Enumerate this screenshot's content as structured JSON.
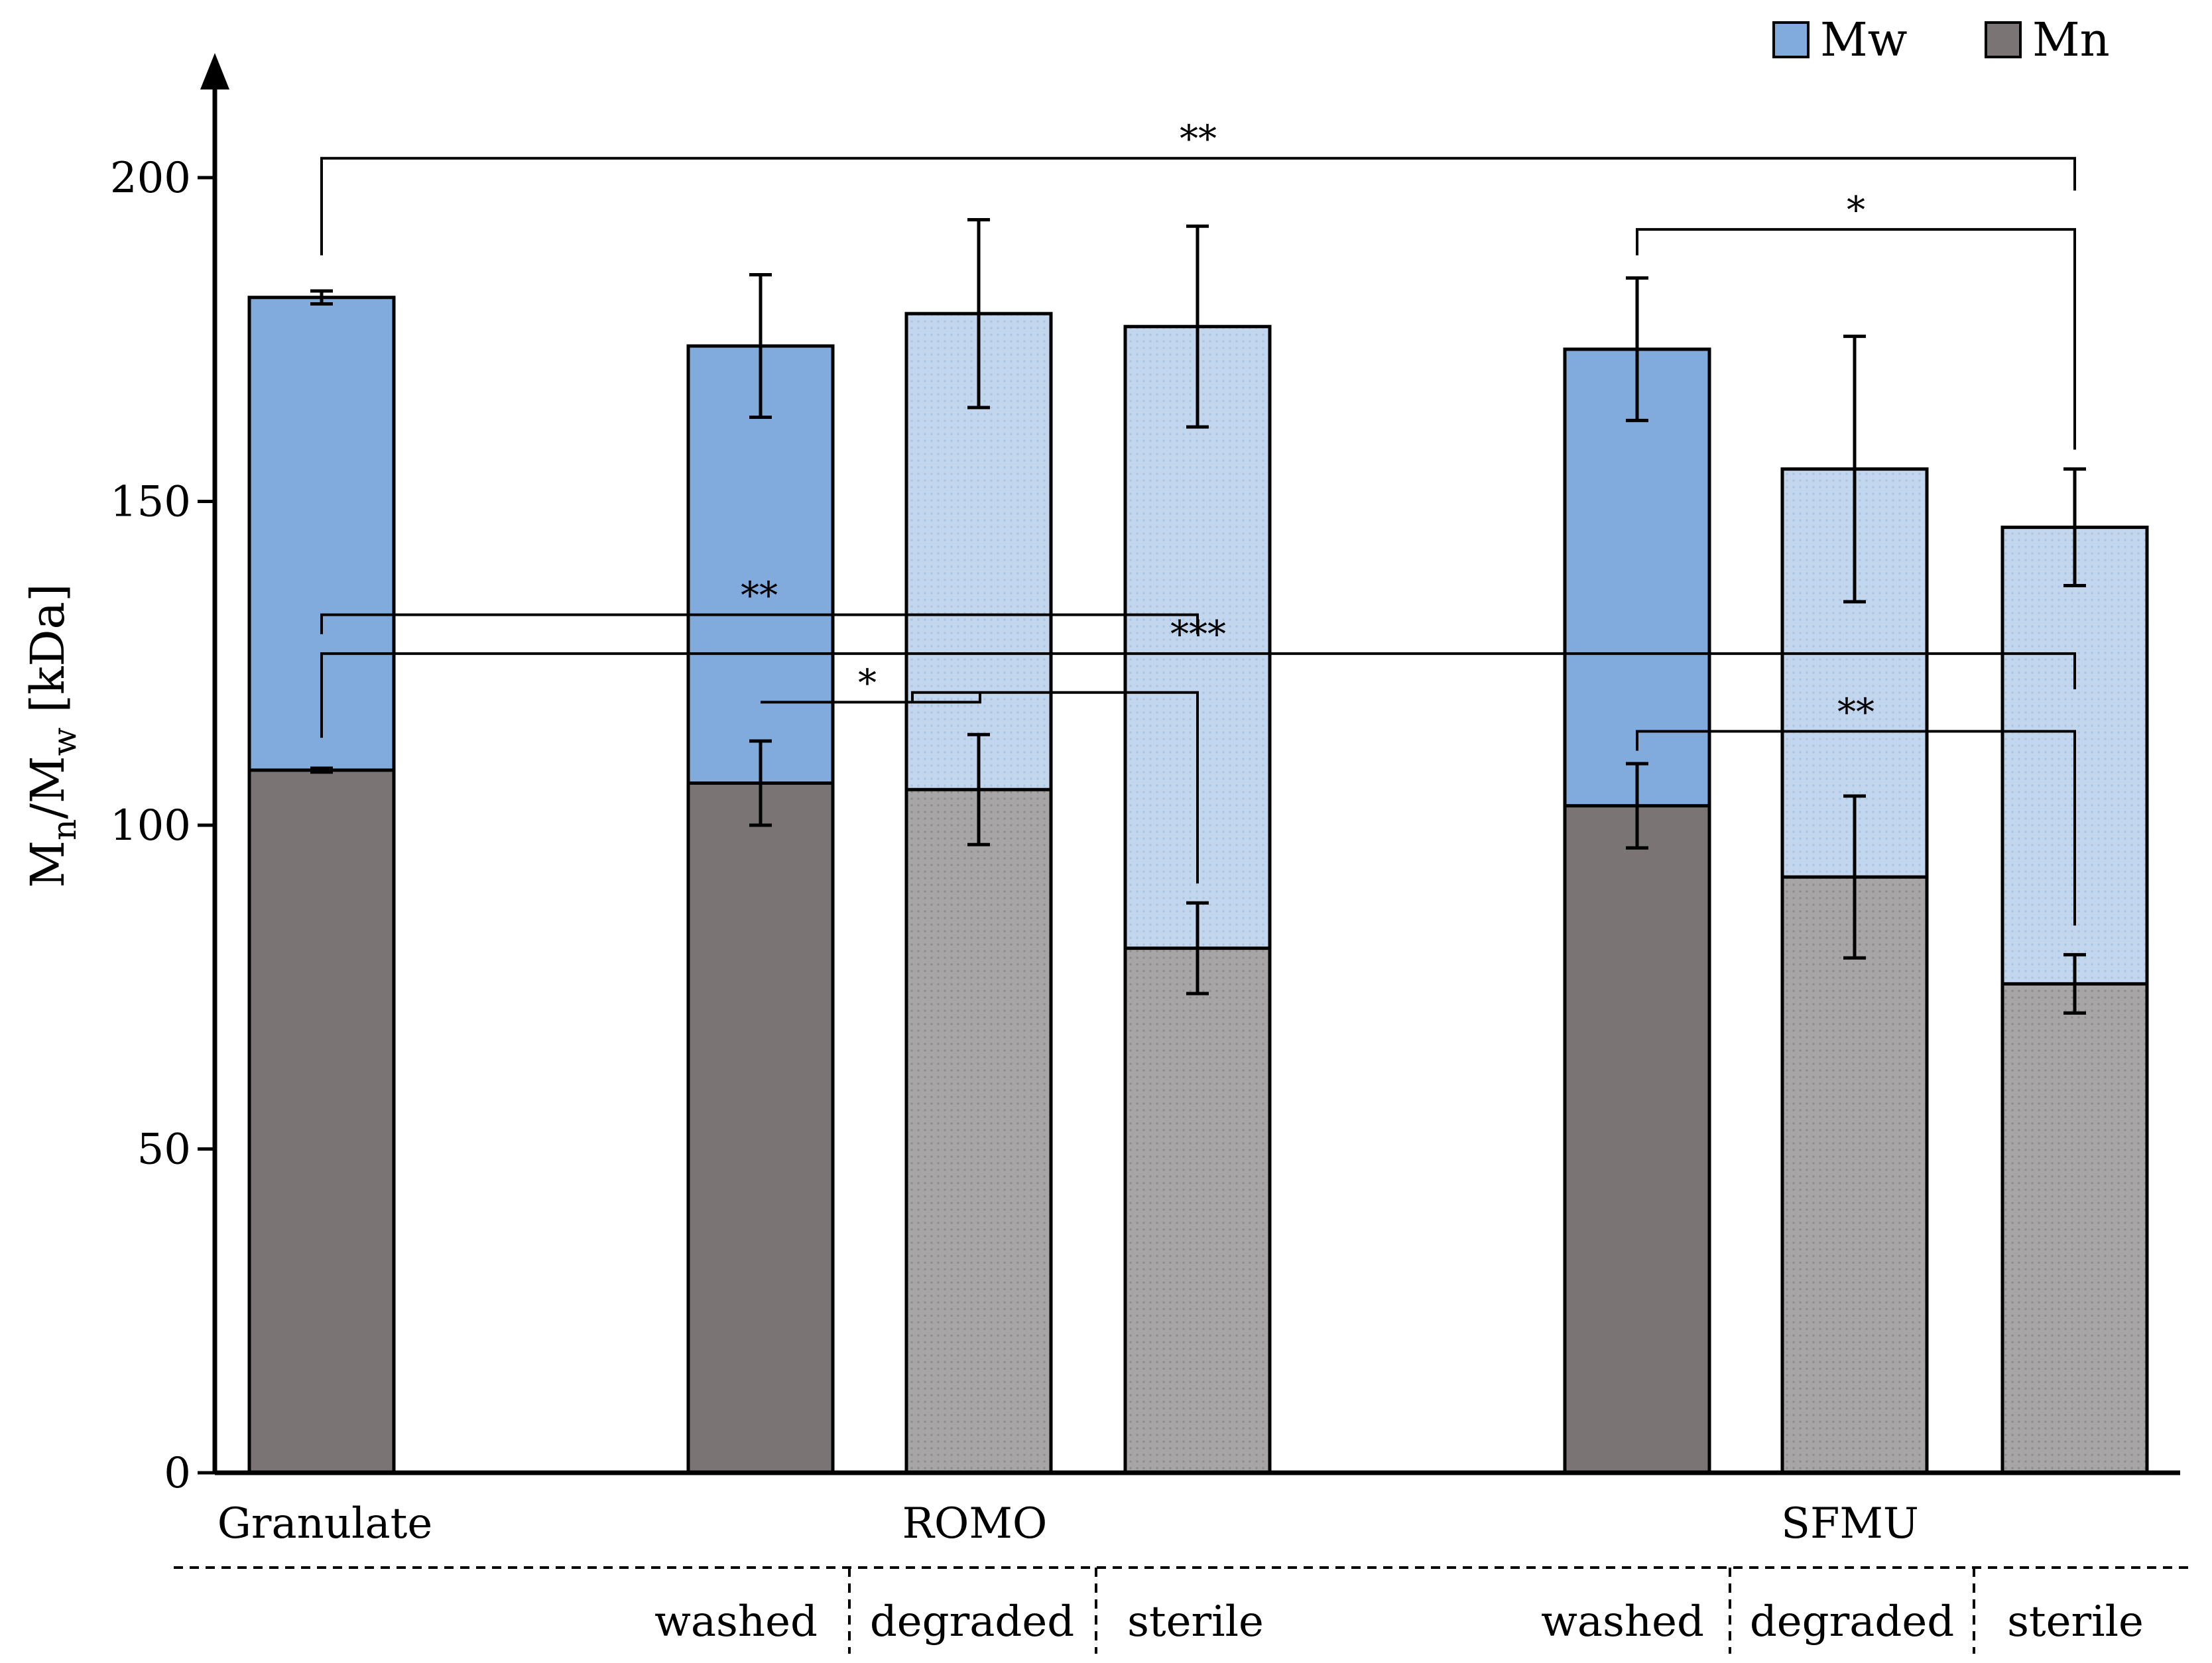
{
  "chart_data": {
    "type": "bar",
    "stacked": "overlay",
    "ylabel": "Mn/Mw [kDa]",
    "ylabel_parts": {
      "m1": "M",
      "n": "n",
      "sep": "/M",
      "w": "w",
      "unit": " [kDa]"
    },
    "ylim": [
      0,
      220
    ],
    "yticks": [
      0,
      50,
      100,
      150,
      200
    ],
    "grid": false,
    "legend": {
      "position": "top-right",
      "entries": [
        "Mw",
        "Mn"
      ]
    },
    "colors": {
      "mw_dark": "#80abdc",
      "mw_light": "#c2d6ee",
      "mn_dark": "#7a7474",
      "mn_light": "#a8a5a6",
      "axis": "#000000"
    },
    "groups": [
      "Granulate",
      "ROMO",
      "SFMU"
    ],
    "subcategories": [
      "washed",
      "degraded",
      "sterile",
      "washed",
      "degraded",
      "sterile"
    ],
    "series": [
      {
        "name": "Mw",
        "bars": [
          {
            "group": "Granulate",
            "sub": "",
            "value": 181.5,
            "err": 1,
            "shade": "dark"
          },
          {
            "group": "ROMO",
            "sub": "washed",
            "value": 174,
            "err": 11,
            "shade": "dark"
          },
          {
            "group": "ROMO",
            "sub": "degraded",
            "value": 179,
            "err": 14.5,
            "shade": "light"
          },
          {
            "group": "ROMO",
            "sub": "sterile",
            "value": 177,
            "err": 15.5,
            "shade": "light"
          },
          {
            "group": "SFMU",
            "sub": "washed",
            "value": 173.5,
            "err": 11,
            "shade": "dark"
          },
          {
            "group": "SFMU",
            "sub": "degraded",
            "value": 155,
            "err": 20.5,
            "shade": "light"
          },
          {
            "group": "SFMU",
            "sub": "sterile",
            "value": 146,
            "err": 9,
            "shade": "light"
          }
        ]
      },
      {
        "name": "Mn",
        "bars": [
          {
            "group": "Granulate",
            "sub": "",
            "value": 108.5,
            "err": 0.3,
            "shade": "dark"
          },
          {
            "group": "ROMO",
            "sub": "washed",
            "value": 106.5,
            "err": 6.5,
            "shade": "dark"
          },
          {
            "group": "ROMO",
            "sub": "degraded",
            "value": 105.5,
            "err": 8.5,
            "shade": "light"
          },
          {
            "group": "ROMO",
            "sub": "sterile",
            "value": 81,
            "err": 7,
            "shade": "light"
          },
          {
            "group": "SFMU",
            "sub": "washed",
            "value": 103,
            "err": 6.5,
            "shade": "dark"
          },
          {
            "group": "SFMU",
            "sub": "degraded",
            "value": 92,
            "err": 12.5,
            "shade": "light"
          },
          {
            "group": "SFMU",
            "sub": "sterile",
            "value": 75.5,
            "err": 4.5,
            "shade": "light"
          }
        ]
      }
    ],
    "significance": [
      {
        "label": "**",
        "from_bar": 0,
        "to_bar": 6,
        "level": 203,
        "from_drop": 188,
        "to_drop": 198
      },
      {
        "label": "*",
        "from_bar": 4,
        "to_bar": 6,
        "level": 192,
        "from_drop": 188,
        "to_drop": 158
      },
      {
        "label": "**",
        "from_bar": 0,
        "to_bar": 3,
        "level": 132.5,
        "from_drop": 129.5,
        "to_drop": 129.5
      },
      {
        "label": "***",
        "from_bar": 0,
        "to_bar": 6,
        "level": 126.5,
        "from_drop": 113.5,
        "to_drop": 121
      },
      {
        "label": "*",
        "from_bar": 1,
        "to_bar": 2,
        "level": 119,
        "from_drop": 119,
        "to_drop": 120.5
      },
      {
        "label": "",
        "from_bar": 2,
        "to_bar": 3,
        "level": 120.5,
        "from_drop": 119,
        "to_drop": 91
      },
      {
        "label": "**",
        "from_bar": 4,
        "to_bar": 6,
        "level": 114.5,
        "from_drop": 111.5,
        "to_drop": 84.5
      }
    ]
  }
}
